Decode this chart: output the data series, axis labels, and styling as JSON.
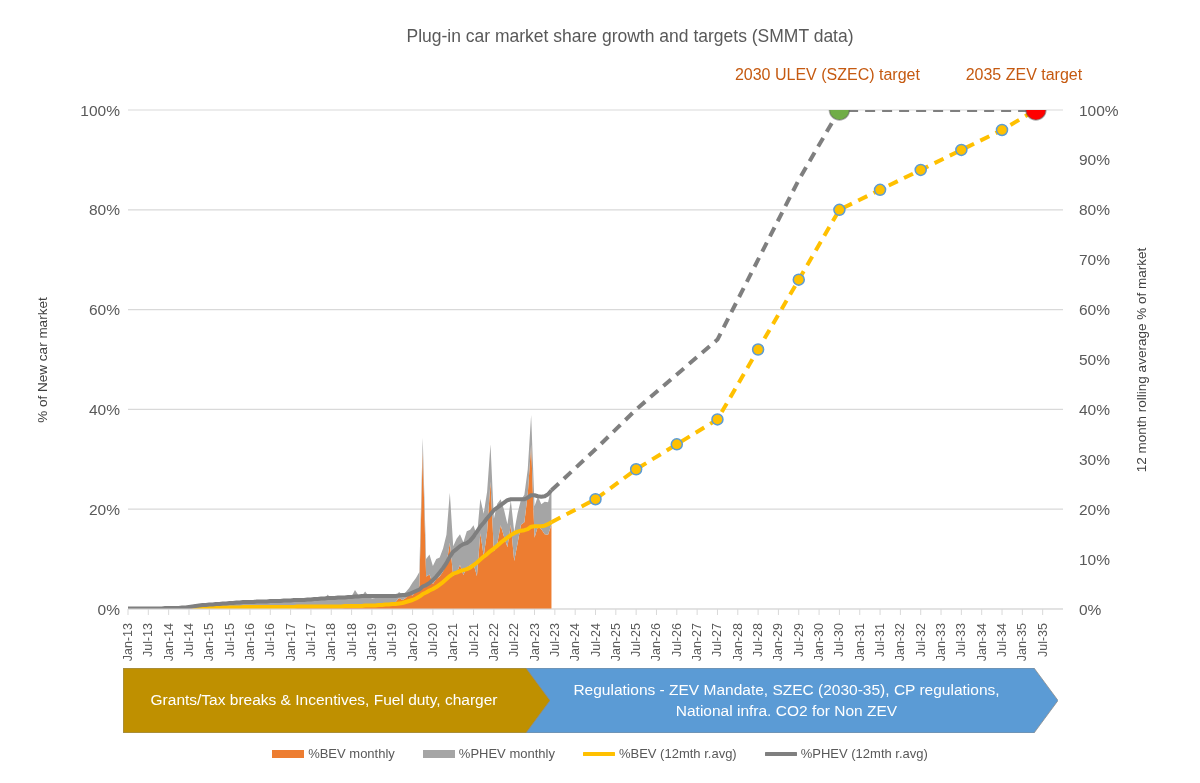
{
  "chart_data": {
    "type": "area",
    "title": "Plug-in car market share growth and targets (SMMT data)",
    "ylabel": "% of New car market",
    "y2label": "12 month rolling average % of market",
    "x": [
      "2013-01",
      "2013-02",
      "2013-03",
      "2013-04",
      "2013-05",
      "2013-06",
      "2013-07",
      "2013-08",
      "2013-09",
      "2013-10",
      "2013-11",
      "2013-12",
      "2014-01",
      "2014-02",
      "2014-03",
      "2014-04",
      "2014-05",
      "2014-06",
      "2014-07",
      "2014-08",
      "2014-09",
      "2014-10",
      "2014-11",
      "2014-12",
      "2015-01",
      "2015-02",
      "2015-03",
      "2015-04",
      "2015-05",
      "2015-06",
      "2015-07",
      "2015-08",
      "2015-09",
      "2015-10",
      "2015-11",
      "2015-12",
      "2016-01",
      "2016-02",
      "2016-03",
      "2016-04",
      "2016-05",
      "2016-06",
      "2016-07",
      "2016-08",
      "2016-09",
      "2016-10",
      "2016-11",
      "2016-12",
      "2017-01",
      "2017-02",
      "2017-03",
      "2017-04",
      "2017-05",
      "2017-06",
      "2017-07",
      "2017-08",
      "2017-09",
      "2017-10",
      "2017-11",
      "2017-12",
      "2018-01",
      "2018-02",
      "2018-03",
      "2018-04",
      "2018-05",
      "2018-06",
      "2018-07",
      "2018-08",
      "2018-09",
      "2018-10",
      "2018-11",
      "2018-12",
      "2019-01",
      "2019-02",
      "2019-03",
      "2019-04",
      "2019-05",
      "2019-06",
      "2019-07",
      "2019-08",
      "2019-09",
      "2019-10",
      "2019-11",
      "2019-12",
      "2020-01",
      "2020-02",
      "2020-03",
      "2020-04",
      "2020-05",
      "2020-06",
      "2020-07",
      "2020-08",
      "2020-09",
      "2020-10",
      "2020-11",
      "2020-12",
      "2021-01",
      "2021-02",
      "2021-03",
      "2021-04",
      "2021-05",
      "2021-06",
      "2021-07",
      "2021-08",
      "2021-09",
      "2021-10",
      "2021-11",
      "2021-12",
      "2022-01",
      "2022-02",
      "2022-03",
      "2022-04",
      "2022-05",
      "2022-06",
      "2022-07",
      "2022-08",
      "2022-09",
      "2022-10",
      "2022-11",
      "2022-12",
      "2023-01",
      "2023-02",
      "2023-03",
      "2023-04",
      "2023-05",
      "2023-06"
    ],
    "series": [
      {
        "name": "%BEV monthly",
        "color": "#ed7d31",
        "values": [
          0.1,
          0.1,
          0.1,
          0.1,
          0.1,
          0.1,
          0.1,
          0.1,
          0.2,
          0.1,
          0.1,
          0.1,
          0.1,
          0.1,
          0.2,
          0.1,
          0.1,
          0.1,
          0.2,
          0.2,
          0.3,
          0.2,
          0.2,
          0.2,
          0.2,
          0.2,
          0.3,
          0.3,
          0.3,
          0.3,
          0.3,
          0.3,
          0.4,
          0.3,
          0.4,
          0.4,
          0.3,
          0.4,
          0.5,
          0.4,
          0.4,
          0.4,
          0.4,
          0.4,
          0.5,
          0.4,
          0.4,
          0.4,
          0.4,
          0.4,
          0.6,
          0.5,
          0.5,
          0.5,
          0.5,
          0.5,
          0.6,
          0.5,
          0.5,
          0.5,
          0.5,
          0.5,
          0.6,
          0.6,
          0.6,
          0.6,
          0.7,
          0.6,
          0.8,
          0.7,
          0.7,
          0.7,
          0.7,
          0.8,
          0.9,
          1.0,
          0.9,
          1.0,
          1.2,
          1.4,
          2.2,
          1.8,
          2.2,
          3.0,
          2.7,
          3.7,
          4.5,
          31.8,
          6.5,
          6.9,
          5.0,
          6.0,
          6.5,
          7.5,
          9.0,
          13.3,
          6.6,
          7.2,
          8.8,
          6.8,
          8.3,
          8.8,
          9.0,
          6.6,
          15.2,
          10.6,
          15.5,
          25.5,
          11.5,
          13.1,
          16.8,
          14.5,
          12.4,
          16.9,
          9.6,
          13.2,
          16.9,
          17.4,
          23.0,
          32.9,
          14.3,
          16.6,
          16.0,
          15.0,
          14.9,
          16.9
        ]
      },
      {
        "name": "%PHEV monthly",
        "color": "#a5a5a5",
        "values": [
          0.1,
          0.1,
          0.1,
          0.1,
          0.1,
          0.1,
          0.1,
          0.1,
          0.2,
          0.1,
          0.1,
          0.2,
          0.2,
          0.2,
          0.3,
          0.3,
          0.3,
          0.4,
          0.5,
          0.5,
          0.7,
          0.6,
          0.7,
          0.8,
          0.8,
          0.9,
          1.1,
          0.9,
          1.0,
          1.0,
          1.1,
          0.9,
          1.1,
          1.0,
          1.1,
          1.0,
          1.0,
          1.1,
          1.2,
          1.1,
          1.1,
          1.1,
          1.2,
          1.1,
          1.2,
          1.2,
          1.2,
          1.2,
          1.2,
          1.3,
          1.4,
          1.2,
          1.3,
          1.3,
          1.3,
          1.4,
          1.4,
          1.5,
          1.6,
          2.4,
          1.3,
          1.5,
          1.6,
          1.6,
          1.6,
          1.6,
          1.8,
          3.2,
          2.0,
          1.9,
          2.8,
          1.9,
          1.4,
          1.4,
          1.5,
          1.3,
          1.5,
          1.3,
          1.4,
          1.2,
          1.2,
          1.1,
          1.2,
          1.2,
          2.6,
          2.5,
          2.9,
          2.5,
          3.5,
          4.0,
          3.6,
          4.0,
          3.8,
          4.6,
          5.9,
          10.0,
          6.0,
          6.9,
          6.2,
          6.6,
          7.3,
          7.1,
          7.8,
          8.0,
          6.9,
          8.5,
          8.0,
          7.5,
          6.6,
          8.0,
          5.2,
          5.4,
          4.6,
          4.9,
          5.9,
          6.0,
          5.0,
          5.5,
          5.0,
          6.0,
          6.3,
          6.0,
          5.0,
          6.5,
          6.5,
          7.5
        ]
      },
      {
        "name": "%BEV (12mth r.avg)",
        "type": "line",
        "color": "#ffc000",
        "values": [
          null,
          null,
          null,
          null,
          null,
          null,
          null,
          null,
          null,
          null,
          null,
          null,
          null,
          null,
          null,
          null,
          null,
          null,
          null,
          0.2,
          0.2,
          0.2,
          0.2,
          0.2,
          0.2,
          0.2,
          0.3,
          0.3,
          0.3,
          0.3,
          0.3,
          0.3,
          0.3,
          0.3,
          0.4,
          0.4,
          0.4,
          0.4,
          0.4,
          0.4,
          0.4,
          0.4,
          0.4,
          0.4,
          0.4,
          0.4,
          0.4,
          0.4,
          0.4,
          0.4,
          0.5,
          0.5,
          0.5,
          0.5,
          0.5,
          0.5,
          0.5,
          0.5,
          0.5,
          0.5,
          0.5,
          0.5,
          0.5,
          0.5,
          0.6,
          0.6,
          0.6,
          0.6,
          0.6,
          0.6,
          0.7,
          0.7,
          0.7,
          0.7,
          0.8,
          0.8,
          0.9,
          0.9,
          1.0,
          1.0,
          1.1,
          1.2,
          1.4,
          1.6,
          1.8,
          2.1,
          2.5,
          3.0,
          3.3,
          3.7,
          4.0,
          4.4,
          4.9,
          5.4,
          6.0,
          6.6,
          7.1,
          7.3,
          7.6,
          7.8,
          8.0,
          8.3,
          8.8,
          9.3,
          9.9,
          10.5,
          11.0,
          11.6,
          12.1,
          12.7,
          13.3,
          13.8,
          14.3,
          14.8,
          15.2,
          15.5,
          15.7,
          15.8,
          16.0,
          16.5,
          16.6,
          16.6,
          16.6,
          16.7,
          17.0,
          17.4
        ]
      },
      {
        "name": "%PHEV (12mth r.avg)",
        "type": "line",
        "color": "#7f7f7f",
        "values": [
          0.1,
          0.1,
          0.1,
          0.1,
          0.1,
          0.1,
          0.1,
          0.1,
          0.1,
          0.1,
          0.1,
          0.2,
          0.2,
          0.2,
          0.2,
          0.2,
          0.3,
          0.3,
          0.4,
          0.5,
          0.6,
          0.7,
          0.8,
          0.8,
          0.9,
          0.9,
          1.0,
          1.0,
          1.1,
          1.1,
          1.2,
          1.2,
          1.3,
          1.3,
          1.4,
          1.4,
          1.4,
          1.4,
          1.5,
          1.5,
          1.5,
          1.5,
          1.6,
          1.6,
          1.6,
          1.6,
          1.7,
          1.7,
          1.7,
          1.8,
          1.8,
          1.8,
          1.8,
          1.9,
          1.9,
          2.0,
          2.0,
          2.1,
          2.1,
          2.2,
          2.2,
          2.2,
          2.3,
          2.3,
          2.3,
          2.4,
          2.4,
          2.5,
          2.5,
          2.6,
          2.6,
          2.6,
          2.6,
          2.6,
          2.6,
          2.6,
          2.6,
          2.6,
          2.6,
          2.6,
          2.7,
          2.8,
          2.8,
          3.0,
          3.3,
          3.6,
          3.9,
          4.5,
          4.8,
          5.2,
          5.8,
          6.5,
          7.3,
          8.2,
          9.2,
          10.5,
          11.5,
          12.0,
          12.6,
          13.0,
          13.2,
          13.7,
          14.5,
          15.5,
          16.5,
          17.3,
          18.2,
          19.0,
          19.8,
          20.3,
          20.8,
          21.3,
          21.8,
          22.0,
          22.0,
          22.0,
          22.0,
          22.0,
          22.3,
          22.8,
          22.8,
          22.6,
          22.5,
          22.6,
          23.0,
          23.8
        ]
      },
      {
        "type": "line",
        "color": "#ffc000",
        "line_style": "dashed",
        "marker": "circle",
        "x": [
          "2023-06",
          "2024-07",
          "2025-07",
          "2026-07",
          "2027-07",
          "2028-07",
          "2029-07",
          "2030-07",
          "2031-07",
          "2032-07",
          "2033-07",
          "2034-07",
          "2035-05"
        ],
        "values": [
          17.4,
          22,
          28,
          33,
          38,
          52,
          66,
          80,
          84,
          88,
          92,
          96,
          100
        ]
      },
      {
        "type": "line",
        "color": "#7f7f7f",
        "line_style": "dashed",
        "marker": "none",
        "x": [
          "2023-06",
          "2024-07",
          "2025-07",
          "2026-07",
          "2027-07",
          "2028-07",
          "2029-07",
          "2030-07",
          "2035-05"
        ],
        "values": [
          23.8,
          32,
          40,
          47,
          54,
          70,
          86,
          100,
          100
        ]
      },
      {
        "type": "scatter",
        "color": "#70ad47",
        "x": [
          "2030-07"
        ],
        "values": [
          100
        ]
      },
      {
        "type": "scatter",
        "color": "#ff0000",
        "x": [
          "2035-05"
        ],
        "values": [
          100
        ]
      }
    ],
    "stacked": true,
    "xlim": [
      "2013-01",
      "2036-01"
    ],
    "xticks": [
      {
        "value": "2013-01",
        "label": "Jan-13"
      },
      {
        "value": "2013-07",
        "label": "Jul-13"
      },
      {
        "value": "2014-01",
        "label": "Jan-14"
      },
      {
        "value": "2014-07",
        "label": "Jul-14"
      },
      {
        "value": "2015-01",
        "label": "Jan-15"
      },
      {
        "value": "2015-07",
        "label": "Jul-15"
      },
      {
        "value": "2016-01",
        "label": "Jan-16"
      },
      {
        "value": "2016-07",
        "label": "Jul-16"
      },
      {
        "value": "2017-01",
        "label": "Jan-17"
      },
      {
        "value": "2017-07",
        "label": "Jul-17"
      },
      {
        "value": "2018-01",
        "label": "Jan-18"
      },
      {
        "value": "2018-07",
        "label": "Jul-18"
      },
      {
        "value": "2019-01",
        "label": "Jan-19"
      },
      {
        "value": "2019-07",
        "label": "Jul-19"
      },
      {
        "value": "2020-01",
        "label": "Jan-20"
      },
      {
        "value": "2020-07",
        "label": "Jul-20"
      },
      {
        "value": "2021-01",
        "label": "Jan-21"
      },
      {
        "value": "2021-07",
        "label": "Jul-21"
      },
      {
        "value": "2022-01",
        "label": "Jan-22"
      },
      {
        "value": "2022-07",
        "label": "Jul-22"
      },
      {
        "value": "2023-01",
        "label": "Jan-23"
      },
      {
        "value": "2023-07",
        "label": "Jul-23"
      },
      {
        "value": "2024-01",
        "label": "Jan-24"
      },
      {
        "value": "2024-07",
        "label": "Jul-24"
      },
      {
        "value": "2025-01",
        "label": "Jan-25"
      },
      {
        "value": "2025-07",
        "label": "Jul-25"
      },
      {
        "value": "2026-01",
        "label": "Jan-26"
      },
      {
        "value": "2026-07",
        "label": "Jul-26"
      },
      {
        "value": "2027-01",
        "label": "Jan-27"
      },
      {
        "value": "2027-07",
        "label": "Jul-27"
      },
      {
        "value": "2028-01",
        "label": "Jan-28"
      },
      {
        "value": "2028-07",
        "label": "Jul-28"
      },
      {
        "value": "2029-01",
        "label": "Jan-29"
      },
      {
        "value": "2029-07",
        "label": "Jul-29"
      },
      {
        "value": "2030-01",
        "label": "Jan-30"
      },
      {
        "value": "2030-07",
        "label": "Jul-30"
      },
      {
        "value": "2031-01",
        "label": "Jan-31"
      },
      {
        "value": "2031-07",
        "label": "Jul-31"
      },
      {
        "value": "2032-01",
        "label": "Jan-32"
      },
      {
        "value": "2032-07",
        "label": "Jul-32"
      },
      {
        "value": "2033-01",
        "label": "Jan-33"
      },
      {
        "value": "2033-07",
        "label": "Jul-33"
      },
      {
        "value": "2034-01",
        "label": "Jan-34"
      },
      {
        "value": "2034-07",
        "label": "Jul-34"
      },
      {
        "value": "2035-01",
        "label": "Jan-35"
      },
      {
        "value": "2035-07",
        "label": "Jul-35"
      }
    ],
    "ylim": [
      0,
      100
    ],
    "yticks": [
      {
        "value": 0,
        "label": "0%"
      },
      {
        "value": 20,
        "label": "20%"
      },
      {
        "value": 40,
        "label": "40%"
      },
      {
        "value": 60,
        "label": "60%"
      },
      {
        "value": 80,
        "label": "80%"
      },
      {
        "value": 100,
        "label": "100%"
      }
    ],
    "y2lim": [
      0,
      100
    ],
    "y2ticks": [
      {
        "value": 0,
        "label": "0%"
      },
      {
        "value": 10,
        "label": "10%"
      },
      {
        "value": 20,
        "label": "20%"
      },
      {
        "value": 30,
        "label": "30%"
      },
      {
        "value": 40,
        "label": "40%"
      },
      {
        "value": 50,
        "label": "50%"
      },
      {
        "value": 60,
        "label": "60%"
      },
      {
        "value": 70,
        "label": "70%"
      },
      {
        "value": 80,
        "label": "80%"
      },
      {
        "value": 90,
        "label": "90%"
      },
      {
        "value": 100,
        "label": "100%"
      }
    ],
    "grid": "y",
    "legend": "bottom",
    "annotations": [
      {
        "text": "2030 ULEV (SZEC) target",
        "x": "2030-07",
        "y": 100
      },
      {
        "text": "2035 ZEV target",
        "x": "2035-05",
        "y": 100
      },
      "Grants/Tax breaks & Incentives, Fuel duty, charger",
      "Regulations - ZEV Mandate, SZEC (2030-35), CP regulations, National infra. CO2 for Non ZEV"
    ]
  }
}
